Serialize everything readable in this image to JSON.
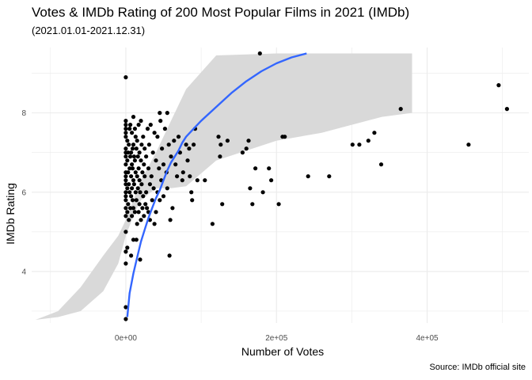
{
  "chart_data": {
    "type": "scatter",
    "title": "Votes & IMDb Rating of 200 Most Popular Films in 2021 (IMDb)",
    "subtitle": "(2021.01.01-2021.12.31)",
    "caption": "Source: IMDb official site",
    "xlabel": "Number of Votes",
    "ylabel": "IMDb Rating",
    "xlim": [
      -125000,
      535000
    ],
    "ylim": [
      2.7,
      9.65
    ],
    "x_ticks": [
      0,
      200000,
      400000
    ],
    "x_tick_labels": [
      "0e+00",
      "2e+05",
      "4e+05"
    ],
    "y_ticks": [
      4,
      6,
      8
    ],
    "y_tick_labels": [
      "4",
      "6",
      "8"
    ],
    "grid": true,
    "colors": {
      "points": "#000000",
      "smooth": "#3366ff",
      "ribbon": "#d9d9d9",
      "grid": "#ebebeb"
    },
    "smooth": {
      "method": "loess",
      "x": [
        2000,
        5000,
        10000,
        15000,
        20000,
        25000,
        30000,
        35000,
        40000,
        45000,
        50000,
        55000,
        60000,
        65000,
        70000,
        75000,
        80000,
        90000,
        100000,
        120000,
        140000,
        160000,
        180000,
        200000,
        220000,
        240000
      ],
      "y": [
        2.85,
        3.45,
        3.95,
        4.35,
        4.75,
        5.05,
        5.35,
        5.6,
        5.85,
        6.05,
        6.3,
        6.55,
        6.75,
        6.9,
        7.05,
        7.25,
        7.4,
        7.6,
        7.8,
        8.15,
        8.5,
        8.8,
        9.05,
        9.25,
        9.4,
        9.5
      ],
      "ci_lower": [
        2.75,
        3.2,
        3.75,
        4.1,
        4.5,
        4.8,
        5.1,
        5.3,
        5.55,
        5.7,
        5.85,
        6.0,
        6.05,
        6.05,
        6.1,
        6.15,
        6.4,
        6.8,
        7.05,
        7.4,
        7.7,
        7.95,
        8.15,
        8.3,
        8.45,
        8.6
      ],
      "ci_upper": [
        2.95,
        3.6,
        4.1,
        4.6,
        5.1,
        5.4,
        5.7,
        5.95,
        6.2,
        6.5,
        6.85,
        7.25,
        7.6,
        7.85,
        8.05,
        8.25,
        8.45,
        8.75,
        9.0,
        9.35,
        9.5,
        9.55,
        9.6,
        9.65,
        9.65,
        9.65
      ],
      "ribbon_x": [
        -120000,
        -90000,
        -60000,
        -30000,
        -10000,
        0,
        10000,
        20000,
        40000,
        60000,
        80000,
        120000,
        200000,
        260000,
        300000,
        340000,
        380000
      ],
      "ribbon_lower": [
        2.78,
        2.85,
        3.0,
        3.5,
        4.2,
        4.9,
        5.4,
        5.8,
        6.1,
        6.1,
        6.15,
        6.8,
        7.3,
        7.5,
        7.7,
        7.9,
        8.0
      ],
      "ribbon_upper": [
        2.78,
        3.0,
        3.6,
        4.4,
        4.9,
        5.3,
        5.8,
        6.3,
        7.0,
        7.8,
        8.6,
        9.45,
        9.5,
        9.5,
        9.5,
        9.5,
        9.5
      ]
    },
    "points": [
      [
        0,
        8.9
      ],
      [
        0,
        7.8
      ],
      [
        0,
        7.7
      ],
      [
        0,
        7.6
      ],
      [
        0,
        7.5
      ],
      [
        0,
        7.4
      ],
      [
        0,
        7.1
      ],
      [
        0,
        7.0
      ],
      [
        0,
        6.9
      ],
      [
        0,
        6.7
      ],
      [
        0,
        6.5
      ],
      [
        0,
        6.4
      ],
      [
        0,
        6.3
      ],
      [
        0,
        6.2
      ],
      [
        0,
        6.0
      ],
      [
        0,
        5.9
      ],
      [
        0,
        5.8
      ],
      [
        0,
        5.6
      ],
      [
        0,
        5.4
      ],
      [
        0,
        5.0
      ],
      [
        0,
        4.5
      ],
      [
        0,
        4.2
      ],
      [
        0,
        3.1
      ],
      [
        0,
        2.8
      ],
      [
        2000,
        7.3
      ],
      [
        2000,
        6.8
      ],
      [
        2000,
        6.1
      ],
      [
        2000,
        5.5
      ],
      [
        2000,
        4.6
      ],
      [
        3000,
        7.0
      ],
      [
        3000,
        6.5
      ],
      [
        3000,
        5.7
      ],
      [
        4000,
        7.2
      ],
      [
        4000,
        6.2
      ],
      [
        4000,
        5.3
      ],
      [
        5000,
        7.6
      ],
      [
        5000,
        6.6
      ],
      [
        5000,
        6.0
      ],
      [
        6000,
        7.7
      ],
      [
        6000,
        6.9
      ],
      [
        6000,
        5.6
      ],
      [
        7000,
        7.0
      ],
      [
        7000,
        6.4
      ],
      [
        7000,
        5.9
      ],
      [
        7000,
        4.4
      ],
      [
        8000,
        7.5
      ],
      [
        8000,
        6.7
      ],
      [
        8000,
        6.1
      ],
      [
        8000,
        5.4
      ],
      [
        9000,
        7.1
      ],
      [
        9000,
        6.6
      ],
      [
        9000,
        5.8
      ],
      [
        10000,
        7.9
      ],
      [
        10000,
        7.2
      ],
      [
        10000,
        6.3
      ],
      [
        10000,
        5.6
      ],
      [
        10000,
        4.8
      ],
      [
        11000,
        6.9
      ],
      [
        11000,
        6.2
      ],
      [
        12000,
        7.6
      ],
      [
        12000,
        6.8
      ],
      [
        12000,
        5.5
      ],
      [
        13000,
        7.4
      ],
      [
        13000,
        6.5
      ],
      [
        13000,
        6.0
      ],
      [
        14000,
        7.1
      ],
      [
        14000,
        5.8
      ],
      [
        14000,
        4.8
      ],
      [
        15000,
        7.3
      ],
      [
        15000,
        6.4
      ],
      [
        15000,
        5.2
      ],
      [
        16000,
        6.9
      ],
      [
        16000,
        6.1
      ],
      [
        17000,
        7.7
      ],
      [
        17000,
        6.6
      ],
      [
        17000,
        5.5
      ],
      [
        18000,
        7.0
      ],
      [
        18000,
        6.3
      ],
      [
        18000,
        5.7
      ],
      [
        19000,
        6.0
      ],
      [
        19000,
        4.3
      ],
      [
        20000,
        7.8
      ],
      [
        20000,
        6.8
      ],
      [
        20000,
        5.3
      ],
      [
        21000,
        7.2
      ],
      [
        21000,
        6.2
      ],
      [
        22000,
        6.5
      ],
      [
        22000,
        5.6
      ],
      [
        23000,
        7.4
      ],
      [
        23000,
        5.9
      ],
      [
        24000,
        6.7
      ],
      [
        24000,
        5.4
      ],
      [
        25000,
        7.1
      ],
      [
        25000,
        6.4
      ],
      [
        26000,
        5.7
      ],
      [
        27000,
        6.9
      ],
      [
        27000,
        6.0
      ],
      [
        28000,
        5.6
      ],
      [
        29000,
        7.6
      ],
      [
        30000,
        6.6
      ],
      [
        30000,
        5.5
      ],
      [
        31000,
        7.2
      ],
      [
        32000,
        6.2
      ],
      [
        32000,
        5.3
      ],
      [
        33000,
        7.7
      ],
      [
        34000,
        6.4
      ],
      [
        35000,
        5.8
      ],
      [
        36000,
        7.0
      ],
      [
        37000,
        6.1
      ],
      [
        38000,
        7.5
      ],
      [
        38000,
        5.2
      ],
      [
        40000,
        6.8
      ],
      [
        40000,
        5.5
      ],
      [
        42000,
        7.4
      ],
      [
        42000,
        6.0
      ],
      [
        44000,
        6.6
      ],
      [
        45000,
        8.0
      ],
      [
        45000,
        5.8
      ],
      [
        46000,
        7.8
      ],
      [
        47000,
        6.3
      ],
      [
        48000,
        7.1
      ],
      [
        50000,
        6.7
      ],
      [
        50000,
        5.9
      ],
      [
        52000,
        7.6
      ],
      [
        54000,
        6.5
      ],
      [
        55000,
        8.0
      ],
      [
        55000,
        6.1
      ],
      [
        57000,
        7.2
      ],
      [
        58000,
        4.4
      ],
      [
        59000,
        5.3
      ],
      [
        60000,
        6.9
      ],
      [
        62000,
        5.6
      ],
      [
        64000,
        7.3
      ],
      [
        66000,
        6.7
      ],
      [
        68000,
        6.4
      ],
      [
        70000,
        7.4
      ],
      [
        72000,
        7.0
      ],
      [
        75000,
        6.3
      ],
      [
        76000,
        6.5
      ],
      [
        80000,
        7.2
      ],
      [
        82000,
        6.8
      ],
      [
        84000,
        7.1
      ],
      [
        85000,
        6.4
      ],
      [
        87000,
        6.0
      ],
      [
        88000,
        5.8
      ],
      [
        90000,
        7.2
      ],
      [
        92000,
        7.6
      ],
      [
        95000,
        6.3
      ],
      [
        105000,
        6.3
      ],
      [
        115000,
        5.2
      ],
      [
        123000,
        7.4
      ],
      [
        125000,
        6.9
      ],
      [
        126000,
        7.2
      ],
      [
        128000,
        5.7
      ],
      [
        135000,
        7.3
      ],
      [
        155000,
        7.0
      ],
      [
        160000,
        7.1
      ],
      [
        163000,
        7.3
      ],
      [
        165000,
        6.1
      ],
      [
        168000,
        5.7
      ],
      [
        172000,
        6.6
      ],
      [
        178000,
        9.5
      ],
      [
        182000,
        6.0
      ],
      [
        190000,
        6.6
      ],
      [
        193000,
        6.3
      ],
      [
        203000,
        5.7
      ],
      [
        208000,
        7.4
      ],
      [
        211000,
        7.4
      ],
      [
        242000,
        6.4
      ],
      [
        270000,
        6.4
      ],
      [
        301000,
        7.2
      ],
      [
        310000,
        7.2
      ],
      [
        322000,
        7.3
      ],
      [
        330000,
        7.5
      ],
      [
        339000,
        6.7
      ],
      [
        365000,
        8.1
      ],
      [
        455000,
        7.2
      ],
      [
        495000,
        8.7
      ],
      [
        506000,
        8.1
      ]
    ]
  }
}
